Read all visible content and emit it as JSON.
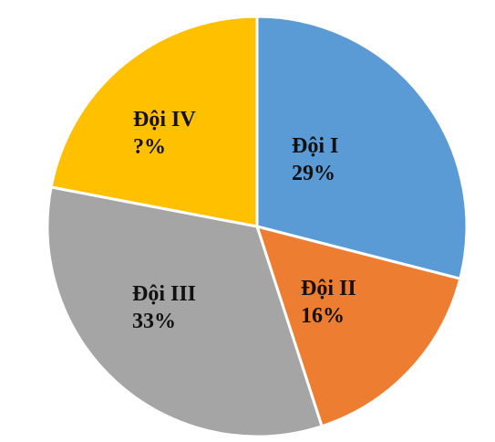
{
  "chart_data": {
    "type": "pie",
    "slices": [
      {
        "name": "Đội I",
        "value_label": "29%",
        "value": 29,
        "color": "#5B9BD5"
      },
      {
        "name": "Đội II",
        "value_label": "16%",
        "value": 16,
        "color": "#ED7D31"
      },
      {
        "name": "Đội III",
        "value_label": "33%",
        "value": 33,
        "color": "#A5A5A5"
      },
      {
        "name": "Đội IV",
        "value_label": "?%",
        "value": 22,
        "color": "#FFC000"
      }
    ],
    "start_angle": "12 o'clock",
    "direction": "clockwise",
    "legend": "none"
  }
}
